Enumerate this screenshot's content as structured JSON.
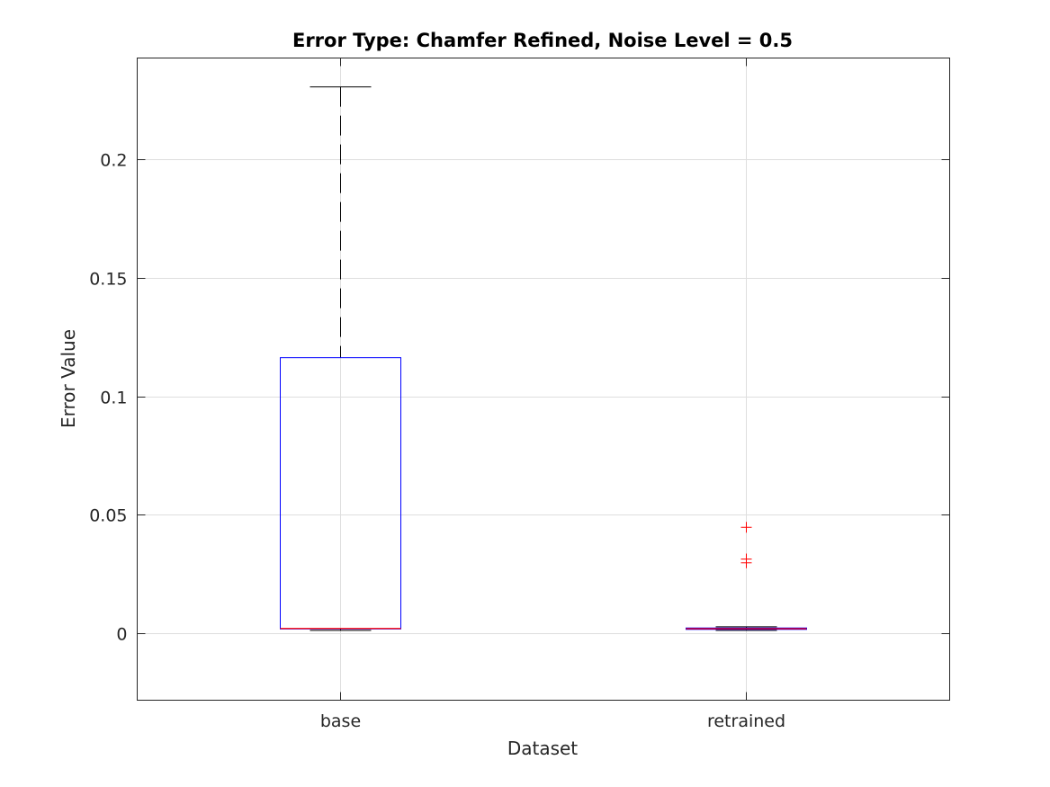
{
  "chart_data": {
    "type": "box",
    "title": "Error Type: Chamfer Refined, Noise Level = 0.5",
    "xlabel": "Dataset",
    "ylabel": "Error Value",
    "ylim": [
      -0.028,
      0.243
    ],
    "yticks": [
      0,
      0.05,
      0.1,
      0.15,
      0.2
    ],
    "ytick_labels": [
      "0",
      "0.05",
      "0.1",
      "0.15",
      "0.2"
    ],
    "grid": true,
    "categories": [
      "base",
      "retrained"
    ],
    "boxes": [
      {
        "category": "base",
        "whisker_low": 0.0012,
        "q1": 0.0018,
        "median": 0.002,
        "q3": 0.1163,
        "whisker_high": 0.2306,
        "outliers": []
      },
      {
        "category": "retrained",
        "whisker_low": 0.0012,
        "q1": 0.0016,
        "median": 0.0019,
        "q3": 0.0022,
        "whisker_high": 0.0027,
        "outliers": [
          0.0447,
          0.0313,
          0.0297
        ]
      }
    ],
    "colors": {
      "box": "#0000ff",
      "median": "#ff0000",
      "whisker": "#000000",
      "outlier": "#ff0000",
      "grid": "#dedede",
      "axes": "#262626"
    }
  }
}
